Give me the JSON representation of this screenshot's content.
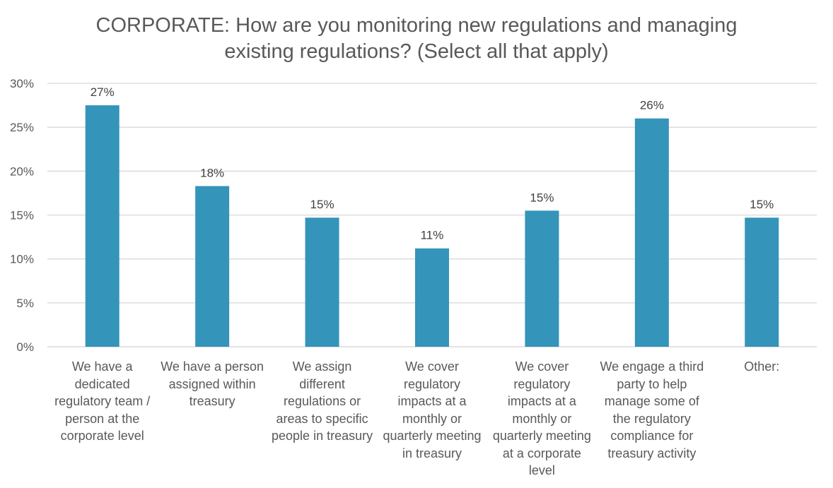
{
  "chart_data": {
    "type": "bar",
    "title": "CORPORATE: How are you monitoring new regulations and managing\nexisting regulations? (Select all that apply)",
    "xlabel": "",
    "ylabel": "",
    "ylim": [
      0,
      30
    ],
    "yticks": [
      0,
      5,
      10,
      15,
      20,
      25,
      30
    ],
    "ytick_labels": [
      "0%",
      "5%",
      "10%",
      "15%",
      "20%",
      "25%",
      "30%"
    ],
    "grid": true,
    "legend": "none",
    "bar_color": "#3494BA",
    "categories": [
      "We have a\ndedicated\nregulatory team /\nperson at the\ncorporate level",
      "We have a person\nassigned within\ntreasury",
      "We assign\ndifferent\nregulations or\nareas to specific\npeople in treasury",
      "We cover\nregulatory\nimpacts at a\nmonthly or\nquarterly meeting\nin treasury",
      "We cover\nregulatory\nimpacts at a\nmonthly or\nquarterly meeting\nat a corporate\nlevel",
      "We engage a third\nparty to help\nmanage some of\nthe regulatory\ncompliance for\ntreasury activity",
      "Other:"
    ],
    "values": [
      27.5,
      18.3,
      14.7,
      11.2,
      15.5,
      26.0,
      14.7
    ],
    "data_labels": [
      "27%",
      "18%",
      "15%",
      "11%",
      "15%",
      "26%",
      "15%"
    ]
  }
}
